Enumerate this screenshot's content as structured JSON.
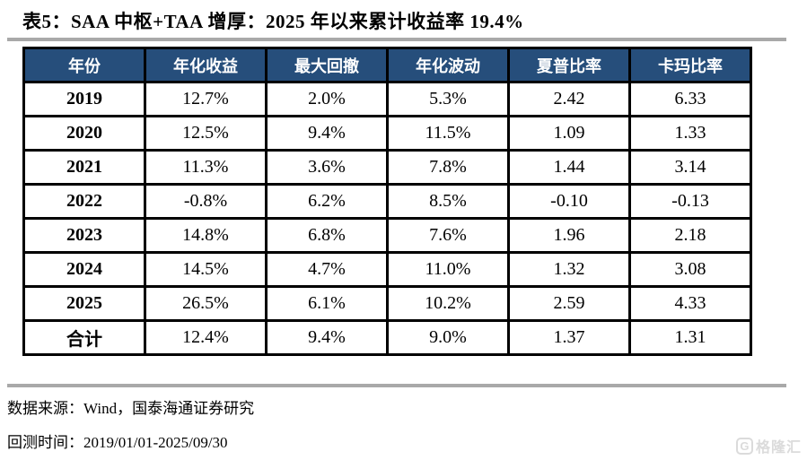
{
  "title": "表5：SAA 中枢+TAA 增厚：2025 年以来累计收益率 19.4%",
  "table": {
    "headers": [
      "年份",
      "年化收益",
      "最大回撤",
      "年化波动",
      "夏普比率",
      "卡玛比率"
    ],
    "rows": [
      {
        "cells": [
          "2019",
          "12.7%",
          "2.0%",
          "5.3%",
          "2.42",
          "6.33"
        ]
      },
      {
        "cells": [
          "2020",
          "12.5%",
          "9.4%",
          "11.5%",
          "1.09",
          "1.33"
        ]
      },
      {
        "cells": [
          "2021",
          "11.3%",
          "3.6%",
          "7.8%",
          "1.44",
          "3.14"
        ]
      },
      {
        "cells": [
          "2022",
          "-0.8%",
          "6.2%",
          "8.5%",
          "-0.10",
          "-0.13"
        ]
      },
      {
        "cells": [
          "2023",
          "14.8%",
          "6.8%",
          "7.6%",
          "1.96",
          "2.18"
        ]
      },
      {
        "cells": [
          "2024",
          "14.5%",
          "4.7%",
          "11.0%",
          "1.32",
          "3.08"
        ]
      },
      {
        "cells": [
          "2025",
          "26.5%",
          "6.1%",
          "10.2%",
          "2.59",
          "4.33"
        ]
      },
      {
        "cells": [
          "合计",
          "12.4%",
          "9.4%",
          "9.0%",
          "1.37",
          "1.31"
        ]
      }
    ]
  },
  "footer": {
    "source": "数据来源：Wind，国泰海通证券研究",
    "backtest": "回测时间：2019/01/01-2025/09/30"
  },
  "watermark": {
    "logo_letter": "G",
    "text": "格隆汇"
  },
  "colors": {
    "header_bg": "#264E7B",
    "border": "#000000",
    "rule": "#A9A9A9",
    "header_text": "#FFFFFF"
  }
}
